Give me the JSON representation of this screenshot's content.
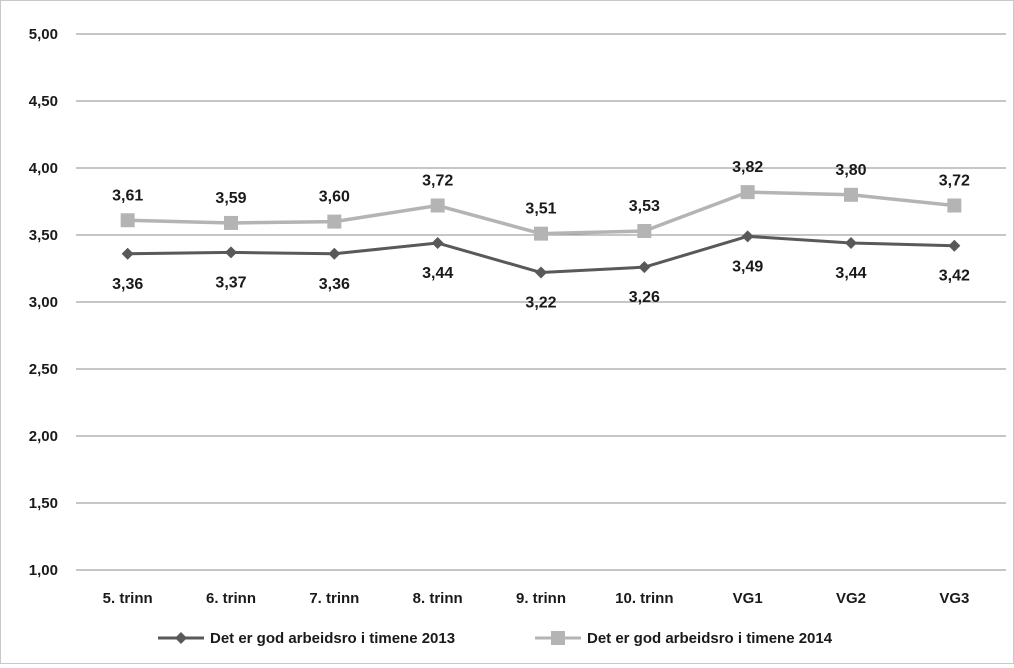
{
  "chart_data": {
    "type": "line",
    "categories": [
      "5. trinn",
      "6. trinn",
      "7. trinn",
      "8. trinn",
      "9. trinn",
      "10. trinn",
      "VG1",
      "VG2",
      "VG3"
    ],
    "series": [
      {
        "name": "Det er god arbeidsro i timene 2013",
        "values": [
          3.36,
          3.37,
          3.36,
          3.44,
          3.22,
          3.26,
          3.49,
          3.44,
          3.42
        ],
        "labels": [
          "3,36",
          "3,37",
          "3,36",
          "3,44",
          "3,22",
          "3,26",
          "3,49",
          "3,44",
          "3,42"
        ],
        "color": "#595959",
        "marker": "diamond",
        "label_position": "below"
      },
      {
        "name": "Det er god arbeidsro i timene 2014",
        "values": [
          3.61,
          3.59,
          3.6,
          3.72,
          3.51,
          3.53,
          3.82,
          3.8,
          3.72
        ],
        "labels": [
          "3,61",
          "3,59",
          "3,60",
          "3,72",
          "3,51",
          "3,53",
          "3,82",
          "3,80",
          "3,72"
        ],
        "color": "#b4b4b4",
        "marker": "square",
        "label_position": "above"
      }
    ],
    "ylim": [
      1.0,
      5.0
    ],
    "yticks": [
      1.0,
      1.5,
      2.0,
      2.5,
      3.0,
      3.5,
      4.0,
      4.5,
      5.0
    ],
    "ytick_labels": [
      "1,00",
      "1,50",
      "2,00",
      "2,50",
      "3,00",
      "3,50",
      "4,00",
      "4,50",
      "5,00"
    ],
    "grid": true,
    "gridline_color": "#8c8c8c",
    "legend_position": "bottom"
  }
}
